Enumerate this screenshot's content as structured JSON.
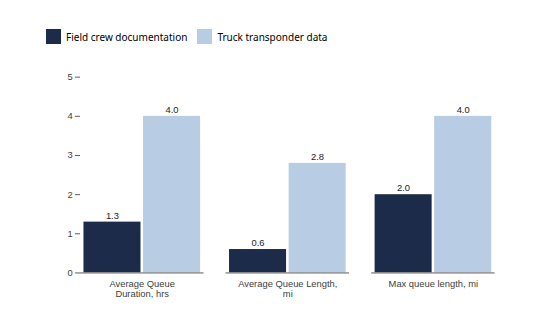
{
  "chart_data": {
    "type": "bar",
    "categories": [
      "Average Queue\nDuration, hrs",
      "Average Queue Length,\nmi",
      "Max queue length, mi"
    ],
    "series": [
      {
        "name": "Field crew documentation",
        "color": "#1C2B4A",
        "values": [
          1.3,
          0.6,
          2.0
        ],
        "value_labels": [
          "1.3",
          "0.6",
          "2.0"
        ]
      },
      {
        "name": "Truck transponder data",
        "color": "#B8CCE4",
        "values": [
          4.0,
          2.8,
          4.0
        ],
        "value_labels": [
          "4.0",
          "2.8",
          "4.0"
        ]
      }
    ],
    "ylim": [
      0,
      5
    ],
    "yticks": [
      0,
      1,
      2,
      3,
      4,
      5
    ],
    "grid": false,
    "legend": "top",
    "data_labels": true
  }
}
